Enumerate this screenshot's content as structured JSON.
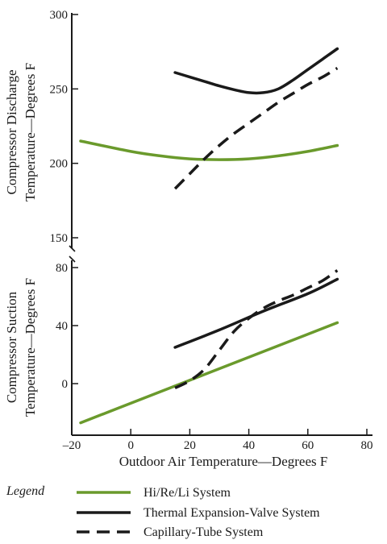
{
  "chart_data": {
    "type": "line",
    "xlabel": "Outdoor Air Temperature—Degrees F",
    "x_ticks": [
      "–20",
      "0",
      "20",
      "40",
      "60",
      "80"
    ],
    "xlim": [
      -20,
      85
    ],
    "panels": [
      {
        "ylabel": [
          "Compressor Discharge",
          "Temperature—Degrees F"
        ],
        "y_ticks": [
          "300",
          "250",
          "200",
          "150"
        ],
        "ylim": [
          145,
          300
        ],
        "series": [
          {
            "name": "Hi/Re/Li System",
            "color": "#6a9a2c",
            "dash": "solid",
            "x": [
              -17,
              0,
              10,
              20,
              30,
              40,
              50,
              60,
              70
            ],
            "y": [
              215,
              208,
              205,
              203,
              202.5,
              203,
              205,
              208,
              212
            ]
          },
          {
            "name": "Thermal Expansion-Valve System",
            "color": "#1a1a1a",
            "dash": "solid",
            "x": [
              15,
              20,
              25,
              30,
              35,
              40,
              45,
              50,
              55,
              60,
              65,
              70
            ],
            "y": [
              261,
              258,
              255,
              252,
              249.5,
              247.5,
              247.5,
              250,
              256,
              263,
              270,
              277
            ]
          },
          {
            "name": "Capillary-Tube System",
            "color": "#1a1a1a",
            "dash": "dashed",
            "x": [
              15,
              20,
              25,
              30,
              35,
              40,
              45,
              50,
              55,
              60,
              65,
              70
            ],
            "y": [
              183,
              193,
              203,
              212,
              220,
              227,
              234,
              241,
              247,
              253,
              258,
              264
            ]
          }
        ]
      },
      {
        "ylabel": [
          "Compressor Suction",
          "Temperature—Degrees F"
        ],
        "y_ticks": [
          "80",
          "40",
          "0"
        ],
        "ylim": [
          -30,
          85
        ],
        "series": [
          {
            "name": "Hi/Re/Li System",
            "color": "#6a9a2c",
            "dash": "solid",
            "x": [
              -17,
              70
            ],
            "y": [
              -27,
              42
            ]
          },
          {
            "name": "Thermal Expansion-Valve System",
            "color": "#1a1a1a",
            "dash": "solid",
            "x": [
              15,
              30,
              45,
              60,
              70
            ],
            "y": [
              25,
              37,
              50,
              62,
              72
            ]
          },
          {
            "name": "Capillary-Tube System",
            "color": "#1a1a1a",
            "dash": "dashed",
            "x": [
              15,
              20,
              25,
              30,
              35,
              40,
              45,
              50,
              55,
              60,
              65,
              70
            ],
            "y": [
              -3,
              2,
              10,
              23,
              36,
              45,
              52,
              57,
              61,
              66,
              71,
              78
            ]
          }
        ]
      }
    ],
    "legend": {
      "title": "Legend",
      "placement": "bottom",
      "entries": [
        {
          "label": "Hi/Re/Li System",
          "color": "#6a9a2c",
          "dash": "solid"
        },
        {
          "label": "Thermal Expansion-Valve System",
          "color": "#1a1a1a",
          "dash": "solid"
        },
        {
          "label": "Capillary-Tube System",
          "color": "#1a1a1a",
          "dash": "dashed"
        }
      ]
    },
    "grid": false
  }
}
